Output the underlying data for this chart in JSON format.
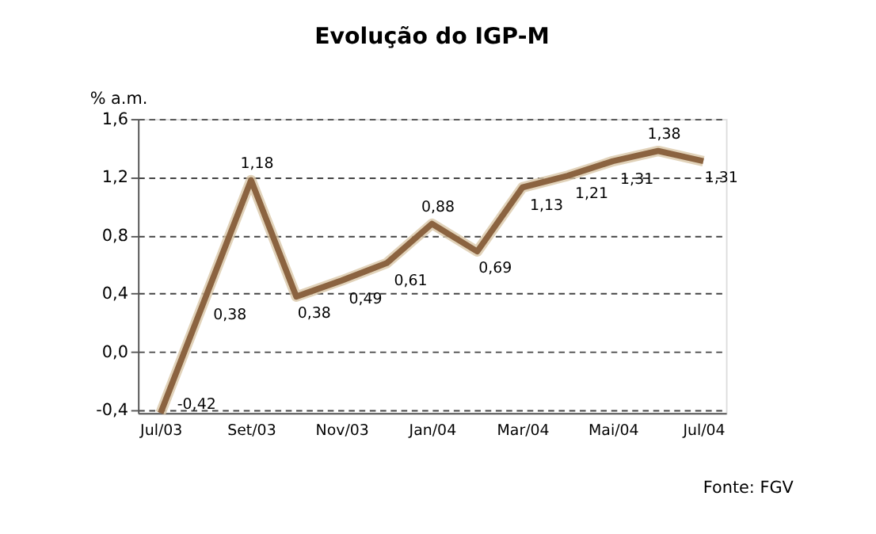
{
  "chart_data": {
    "type": "line",
    "title": "Evolução do IGP-M",
    "ylabel": "% a.m.",
    "categories": [
      "Jul/03",
      null,
      "Set/03",
      null,
      "Nov/03",
      null,
      "Jan/04",
      null,
      "Mar/04",
      null,
      "Mai/04",
      null,
      "Jul/04"
    ],
    "series": [
      {
        "color": "#8b6340",
        "values": [
          -0.42,
          0.38,
          1.18,
          0.38,
          0.49,
          0.61,
          0.88,
          0.69,
          1.13,
          1.21,
          1.31,
          1.38,
          1.31
        ],
        "value_labels": [
          "-0,42",
          "0,38",
          "1,18",
          "0,38",
          "0,49",
          "0,61",
          "0,88",
          "0,69",
          "1,13",
          "1,21",
          "1,31",
          "1,38",
          "1,31"
        ]
      }
    ],
    "ylim": [
      -0.42,
      1.6
    ],
    "yticks": [
      {
        "value": -0.4,
        "label": "-0,4"
      },
      {
        "value": 0.0,
        "label": "0,0"
      },
      {
        "value": 0.4,
        "label": "0,4"
      },
      {
        "value": 0.8,
        "label": "0,8"
      },
      {
        "value": 1.2,
        "label": "1,2"
      },
      {
        "value": 1.6,
        "label": "1,6"
      }
    ],
    "grid": "y",
    "line_style": "solid",
    "marker": "none",
    "annotations": [
      "Fonte: FGV"
    ]
  }
}
